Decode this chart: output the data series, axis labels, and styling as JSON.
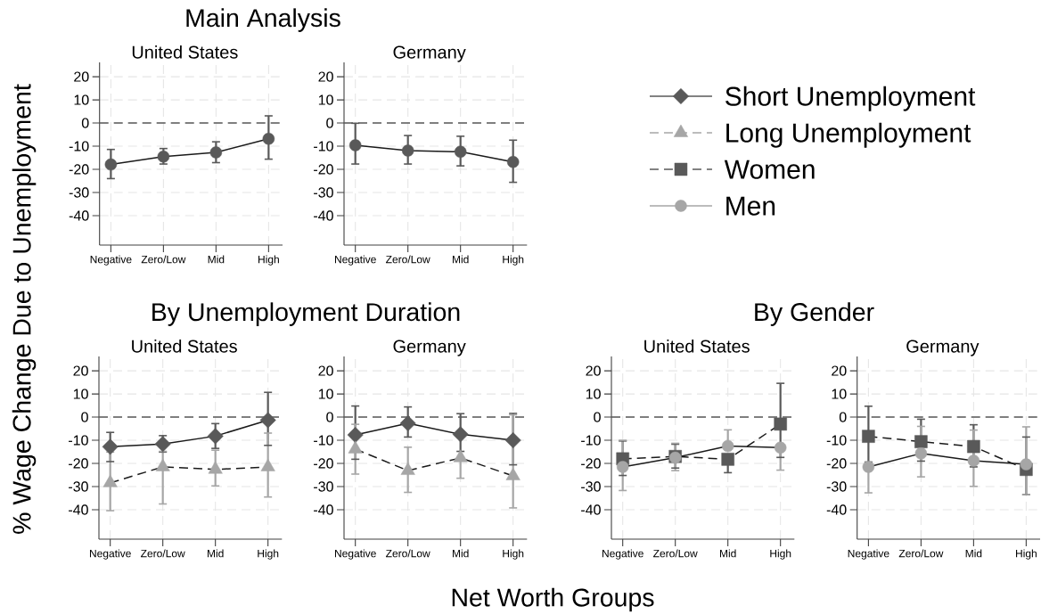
{
  "chart_data": [
    {
      "type": "line",
      "title": "Main Analysis",
      "subtitle": "United States",
      "ylabel": "% Wage Change Due to Unemployment",
      "categories": [
        "Negative",
        "Zero/Low",
        "Mid",
        "High"
      ],
      "values": [
        -17.9,
        -14.5,
        -12.7,
        -6.8
      ],
      "errors": [
        [
          -24.0,
          -11.4
        ],
        [
          -17.7,
          -11.0
        ],
        [
          -17.1,
          -8.1
        ],
        [
          -15.6,
          3.1
        ]
      ],
      "color": "#595959",
      "marker": "circle",
      "line_style": "solid",
      "ylim": [
        -52.7,
        26.2
      ],
      "yticks": [
        20,
        10,
        0,
        -10,
        -20,
        -30,
        -40
      ],
      "grid": true,
      "ref_lines": [
        {
          "axis": "y",
          "value": 0,
          "color": "#595959",
          "line_style": "dashed"
        }
      ]
    },
    {
      "type": "line",
      "subtitle": "Germany",
      "categories": [
        "Negative",
        "Zero/Low",
        "Mid",
        "High"
      ],
      "values": [
        -9.6,
        -11.9,
        -12.4,
        -16.8
      ],
      "errors": [
        [
          -17.7,
          -0.1
        ],
        [
          -17.7,
          -5.4
        ],
        [
          -18.5,
          -5.7
        ],
        [
          -25.6,
          -7.4
        ]
      ],
      "color": "#595959",
      "marker": "circle",
      "line_style": "solid",
      "ylim": [
        -52.7,
        26.2
      ],
      "yticks": [
        20,
        10,
        0,
        -10,
        -20,
        -30,
        -40
      ],
      "grid": true,
      "ref_lines": [
        {
          "axis": "y",
          "value": 0,
          "color": "#595959",
          "line_style": "dashed"
        }
      ]
    },
    {
      "type": "line",
      "title": "By Unemployment Duration",
      "subtitle": "United States",
      "categories": [
        "Negative",
        "Zero/Low",
        "Mid",
        "High"
      ],
      "series": [
        {
          "name": "Short Unemployment",
          "color": "#595959",
          "marker": "diamond",
          "line_style": "solid",
          "values": [
            -12.8,
            -11.6,
            -8.2,
            -1.3
          ],
          "errors": [
            [
              -19.2,
              -6.6
            ],
            [
              -15.1,
              -8.0
            ],
            [
              -13.5,
              -2.8
            ],
            [
              -12.2,
              10.7
            ]
          ]
        },
        {
          "name": "Long Unemployment",
          "color": "#a6a6a6",
          "marker": "triangle",
          "line_style": "dashed",
          "values": [
            -28.4,
            -21.5,
            -22.6,
            -21.5
          ],
          "errors": [
            [
              -40.4,
              -15.1
            ],
            [
              -37.5,
              -14.8
            ],
            [
              -29.7,
              -14.3
            ],
            [
              -34.5,
              -6.9
            ]
          ]
        }
      ],
      "legend": "top right",
      "ylim": [
        -52.7,
        26.2
      ],
      "yticks": [
        20,
        10,
        0,
        -10,
        -20,
        -30,
        -40
      ],
      "grid": true,
      "ref_lines": [
        {
          "axis": "y",
          "value": 0,
          "color": "#595959",
          "line_style": "dashed"
        }
      ]
    },
    {
      "type": "line",
      "subtitle": "Germany",
      "xlabel": "Net Worth Groups",
      "categories": [
        "Negative",
        "Zero/Low",
        "Mid",
        "High"
      ],
      "series": [
        {
          "color": "#595959",
          "marker": "diamond",
          "line_style": "solid",
          "values": [
            -7.7,
            -2.7,
            -7.4,
            -10.0
          ],
          "errors": [
            [
              -18.2,
              4.8
            ],
            [
              -8.6,
              4.4
            ],
            [
              -14.8,
              1.5
            ],
            [
              -20.6,
              1.6
            ]
          ]
        },
        {
          "color": "#a6a6a6",
          "marker": "triangle",
          "line_style": "dashed",
          "values": [
            -13.8,
            -23.1,
            -17.6,
            -25.4
          ],
          "errors": [
            [
              -24.6,
              -3.1
            ],
            [
              -32.5,
              -13.0
            ],
            [
              -26.4,
              -17.6
            ],
            [
              -39.2,
              1.0
            ]
          ]
        }
      ],
      "ylim": [
        -52.7,
        26.2
      ],
      "yticks": [
        20,
        10,
        0,
        -10,
        -20,
        -30,
        -40
      ],
      "grid": true,
      "ref_lines": [
        {
          "axis": "y",
          "value": 0,
          "color": "#595959",
          "line_style": "dashed"
        }
      ]
    },
    {
      "type": "line",
      "title": "By Gender",
      "subtitle": "United States",
      "categories": [
        "Negative",
        "Zero/Low",
        "Mid",
        "High"
      ],
      "series": [
        {
          "name": "Women",
          "color": "#595959",
          "marker": "square",
          "line_style": "dashed",
          "values": [
            -18.0,
            -17.0,
            -18.2,
            -3.0
          ],
          "errors": [
            [
              -25.2,
              -10.3
            ],
            [
              -22.0,
              -11.7
            ],
            [
              -24.0,
              -18.2
            ],
            [
              -17.4,
              14.6
            ]
          ]
        },
        {
          "name": "Men",
          "color": "#a6a6a6",
          "marker": "circle",
          "line_style": "solid",
          "values": [
            -21.5,
            -17.5,
            -12.5,
            -13.2
          ],
          "errors": [
            [
              -31.7,
              -10.0
            ],
            [
              -23.1,
              -11.3
            ],
            [
              -12.5,
              -5.5
            ],
            [
              -22.9,
              -13.2
            ]
          ]
        }
      ],
      "legend": "top right",
      "ylim": [
        -52.7,
        26.2
      ],
      "yticks": [
        20,
        10,
        0,
        -10,
        -20,
        -30,
        -40
      ],
      "grid": true,
      "ref_lines": [
        {
          "axis": "y",
          "value": 0,
          "color": "#595959",
          "line_style": "dashed"
        }
      ]
    },
    {
      "type": "line",
      "subtitle": "Germany",
      "categories": [
        "Negative",
        "Zero/Low",
        "Mid",
        "High"
      ],
      "series": [
        {
          "color": "#595959",
          "marker": "square",
          "line_style": "dashed",
          "values": [
            -8.3,
            -10.6,
            -12.7,
            -22.6
          ],
          "errors": [
            [
              -19.4,
              4.7
            ],
            [
              -19.0,
              -0.9
            ],
            [
              -21.5,
              -3.3
            ],
            [
              -33.5,
              -8.6
            ]
          ]
        },
        {
          "color": "#a6a6a6",
          "marker": "circle",
          "line_style": "solid",
          "values": [
            -21.5,
            -15.7,
            -18.8,
            -20.4
          ],
          "errors": [
            [
              -32.7,
              -21.5
            ],
            [
              -25.8,
              -4.0
            ],
            [
              -29.9,
              -5.6
            ],
            [
              -33.5,
              -4.2
            ]
          ]
        }
      ],
      "ylim": [
        -52.7,
        26.2
      ],
      "yticks": [
        20,
        10,
        0,
        -10,
        -20,
        -30,
        -40
      ],
      "grid": true,
      "ref_lines": [
        {
          "axis": "y",
          "value": 0,
          "color": "#595959",
          "line_style": "dashed"
        }
      ]
    }
  ]
}
